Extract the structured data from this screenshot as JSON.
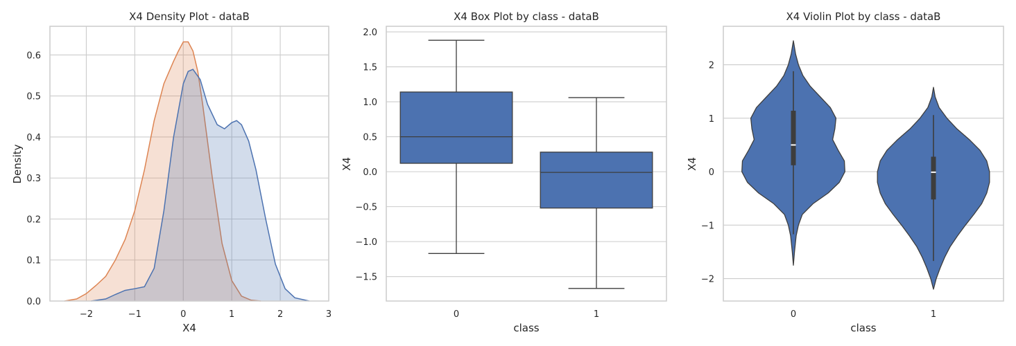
{
  "colors": {
    "blue": "#4c72b0",
    "orange": "#dd8452",
    "line": "#3d3d3d",
    "grid": "#cccccc"
  },
  "chart_data": [
    {
      "type": "area",
      "title": "X4 Density Plot - dataB",
      "xlabel": "X4",
      "ylabel": "Density",
      "xlim": [
        -2.75,
        3.0
      ],
      "ylim": [
        0,
        0.67
      ],
      "xticks": [
        "−2",
        "−1",
        "0",
        "1",
        "2",
        "3"
      ],
      "xtick_values": [
        -2,
        -1,
        0,
        1,
        2,
        3
      ],
      "yticks": [
        "0.0",
        "0.1",
        "0.2",
        "0.3",
        "0.4",
        "0.5",
        "0.6"
      ],
      "ytick_values": [
        0,
        0.1,
        0.2,
        0.3,
        0.4,
        0.5,
        0.6
      ],
      "grid": true,
      "series": [
        {
          "color": "#dd8452",
          "x": [
            -2.45,
            -2.2,
            -2.0,
            -1.8,
            -1.6,
            -1.4,
            -1.2,
            -1.0,
            -0.8,
            -0.6,
            -0.4,
            -0.2,
            -0.1,
            0.0,
            0.1,
            0.2,
            0.3,
            0.4,
            0.5,
            0.6,
            0.8,
            1.0,
            1.2,
            1.4,
            1.6
          ],
          "y": [
            0.0,
            0.005,
            0.018,
            0.038,
            0.06,
            0.1,
            0.15,
            0.22,
            0.32,
            0.44,
            0.53,
            0.585,
            0.61,
            0.632,
            0.632,
            0.61,
            0.56,
            0.48,
            0.39,
            0.3,
            0.14,
            0.05,
            0.012,
            0.002,
            0.0
          ]
        },
        {
          "color": "#4c72b0",
          "x": [
            -1.9,
            -1.6,
            -1.4,
            -1.2,
            -1.0,
            -0.8,
            -0.6,
            -0.4,
            -0.2,
            0.0,
            0.1,
            0.2,
            0.35,
            0.5,
            0.7,
            0.85,
            1.0,
            1.1,
            1.2,
            1.35,
            1.5,
            1.7,
            1.9,
            2.1,
            2.3,
            2.6
          ],
          "y": [
            0.0,
            0.005,
            0.016,
            0.026,
            0.03,
            0.035,
            0.08,
            0.22,
            0.4,
            0.53,
            0.56,
            0.565,
            0.54,
            0.48,
            0.43,
            0.42,
            0.435,
            0.44,
            0.43,
            0.39,
            0.32,
            0.2,
            0.09,
            0.03,
            0.008,
            0.0
          ]
        }
      ]
    },
    {
      "type": "box",
      "title": "X4 Box Plot by class - dataB",
      "xlabel": "class",
      "ylabel": "X4",
      "ylim": [
        -1.85,
        2.08
      ],
      "categories": [
        "0",
        "1"
      ],
      "yticks": [
        "−1.5",
        "−1.0",
        "−0.5",
        "0.0",
        "0.5",
        "1.0",
        "1.5",
        "2.0"
      ],
      "ytick_values": [
        -1.5,
        -1.0,
        -0.5,
        0.0,
        0.5,
        1.0,
        1.5,
        2.0
      ],
      "grid": true,
      "boxes": [
        {
          "whisker_low": -1.17,
          "q1": 0.12,
          "median": 0.5,
          "q3": 1.14,
          "whisker_high": 1.88
        },
        {
          "whisker_low": -1.67,
          "q1": -0.52,
          "median": -0.01,
          "q3": 0.28,
          "whisker_high": 1.06
        }
      ]
    },
    {
      "type": "violin",
      "title": "X4 Violin Plot by class - dataB",
      "xlabel": "class",
      "ylabel": "X4",
      "ylim": [
        -2.42,
        2.72
      ],
      "categories": [
        "0",
        "1"
      ],
      "yticks": [
        "−2",
        "−1",
        "0",
        "1",
        "2"
      ],
      "ytick_values": [
        -2,
        -1,
        0,
        1,
        2
      ],
      "grid": true,
      "violins": [
        {
          "profile_y": [
            -1.75,
            -1.5,
            -1.2,
            -1.0,
            -0.8,
            -0.6,
            -0.4,
            -0.2,
            0.0,
            0.2,
            0.4,
            0.6,
            0.8,
            1.0,
            1.2,
            1.4,
            1.6,
            1.8,
            2.0,
            2.2,
            2.45
          ],
          "profile_w": [
            0.0,
            0.02,
            0.05,
            0.09,
            0.16,
            0.35,
            0.62,
            0.82,
            0.92,
            0.91,
            0.8,
            0.7,
            0.74,
            0.76,
            0.66,
            0.48,
            0.3,
            0.17,
            0.09,
            0.04,
            0.0
          ],
          "whisker_low": -1.17,
          "q1": 0.12,
          "median": 0.5,
          "q3": 1.14,
          "whisker_high": 1.88
        },
        {
          "profile_y": [
            -2.2,
            -2.0,
            -1.8,
            -1.6,
            -1.4,
            -1.2,
            -1.0,
            -0.8,
            -0.6,
            -0.4,
            -0.2,
            0.0,
            0.2,
            0.4,
            0.6,
            0.8,
            1.0,
            1.2,
            1.4,
            1.58
          ],
          "profile_w": [
            0.0,
            0.05,
            0.12,
            0.2,
            0.3,
            0.43,
            0.57,
            0.72,
            0.86,
            0.95,
            1.0,
            1.0,
            0.95,
            0.83,
            0.64,
            0.42,
            0.24,
            0.1,
            0.03,
            0.0
          ],
          "whisker_low": -1.67,
          "q1": -0.52,
          "median": -0.01,
          "q3": 0.28,
          "whisker_high": 1.06
        }
      ]
    }
  ]
}
